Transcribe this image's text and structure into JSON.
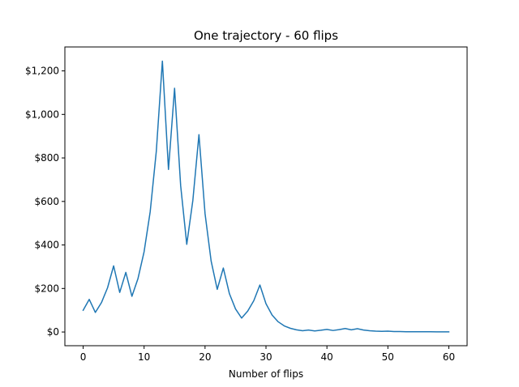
{
  "chart_data": {
    "type": "line",
    "title": "One trajectory - 60 flips",
    "xlabel": "Number of flips",
    "ylabel": "",
    "xlim": [
      -3,
      63
    ],
    "ylim": [
      -63,
      1310
    ],
    "xticks": [
      0,
      10,
      20,
      30,
      40,
      50,
      60
    ],
    "yticks": [
      0,
      200,
      400,
      600,
      800,
      1000,
      1200
    ],
    "ytick_labels": [
      "$0",
      "$200",
      "$400",
      "$600",
      "$800",
      "$1,000",
      "$1,200"
    ],
    "grid": false,
    "series": [
      {
        "color": "#1f77b4",
        "x": [
          0,
          1,
          2,
          3,
          4,
          5,
          6,
          7,
          8,
          9,
          10,
          11,
          12,
          13,
          14,
          15,
          16,
          17,
          18,
          19,
          20,
          21,
          22,
          23,
          24,
          25,
          26,
          27,
          28,
          29,
          30,
          31,
          32,
          33,
          34,
          35,
          36,
          37,
          38,
          39,
          40,
          41,
          42,
          43,
          44,
          45,
          46,
          47,
          48,
          49,
          50,
          51,
          52,
          53,
          54,
          55,
          56,
          57,
          58,
          59,
          60
        ],
        "y": [
          100,
          150,
          90,
          135,
          203,
          304,
          182,
          274,
          164,
          246,
          369,
          553,
          830,
          1245,
          747,
          1120,
          672,
          403,
          605,
          907,
          544,
          326,
          196,
          294,
          176,
          106,
          64,
          96,
          144,
          216,
          130,
          78,
          47,
          28,
          17,
          10,
          6,
          9,
          5,
          8,
          12,
          7,
          11,
          16,
          10,
          15,
          9,
          6,
          4,
          3,
          4,
          2,
          2,
          1,
          1,
          1,
          1,
          1,
          0.5,
          0.5,
          0.5
        ]
      }
    ]
  }
}
